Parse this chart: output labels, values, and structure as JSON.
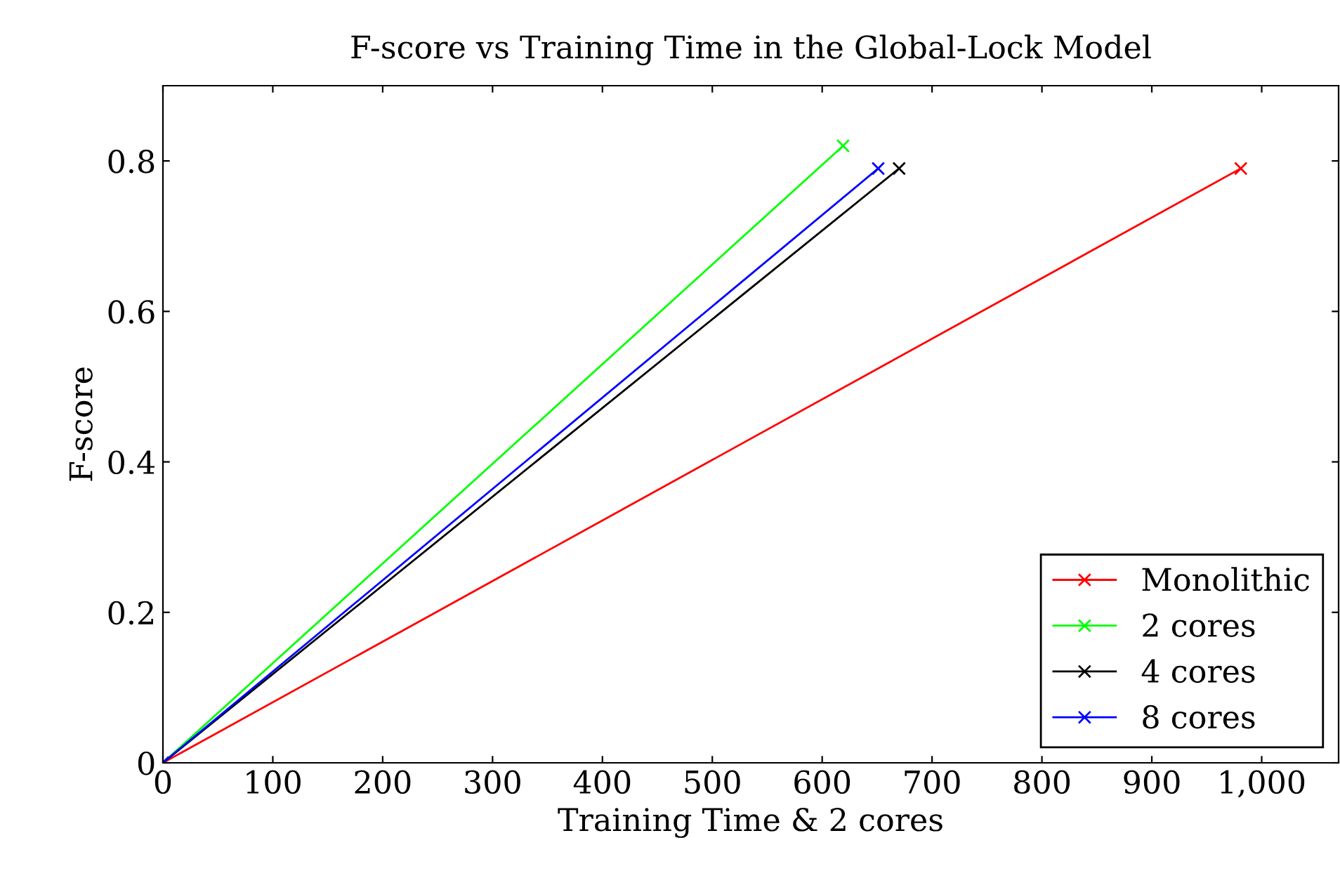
{
  "chart_data": {
    "type": "line",
    "title": "F-score vs Training Time in the Global-Lock Model",
    "xlabel": "Training Time & 2 cores",
    "ylabel": "F-score",
    "xlim": [
      0,
      1070
    ],
    "ylim": [
      0,
      0.9
    ],
    "xticks": [
      0,
      100,
      200,
      300,
      400,
      500,
      600,
      700,
      800,
      900,
      {
        "value": 1000,
        "label": "1,000"
      }
    ],
    "yticks": [
      0,
      0.2,
      0.4,
      0.6,
      0.8
    ],
    "marker": "cross",
    "grid": false,
    "legend": "bottom right",
    "series": [
      {
        "name": "Monolithic",
        "color": "#ff0000",
        "x": [
          0,
          981
        ],
        "values": [
          0,
          0.79
        ]
      },
      {
        "name": "2 cores",
        "color": "#00ff00",
        "x": [
          0,
          619
        ],
        "values": [
          0,
          0.82
        ]
      },
      {
        "name": "4 cores",
        "color": "#000000",
        "x": [
          0,
          670
        ],
        "values": [
          0,
          0.79
        ]
      },
      {
        "name": "8 cores",
        "color": "#0000ff",
        "x": [
          0,
          651
        ],
        "values": [
          0,
          0.79
        ]
      }
    ]
  }
}
